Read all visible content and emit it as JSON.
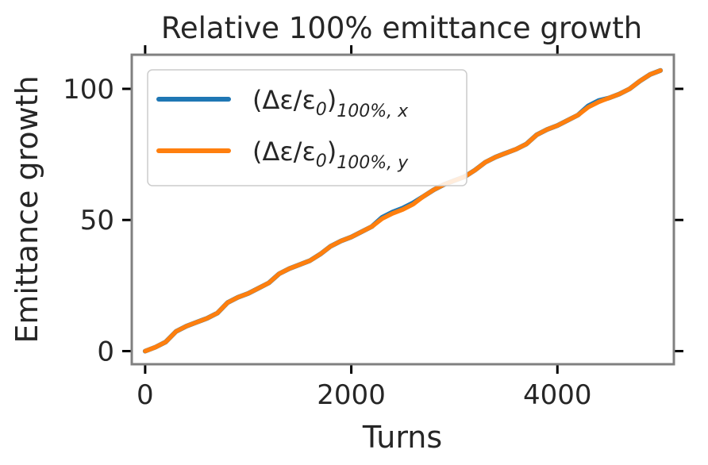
{
  "chart_data": {
    "type": "line",
    "title": "Relative 100% emittance growth",
    "xlabel": "Turns",
    "ylabel": "Emittance growth",
    "xlim": [
      -130,
      5130
    ],
    "ylim": [
      -5,
      113
    ],
    "x_ticks": [
      0,
      2000,
      4000
    ],
    "x_tick_labels": [
      "0",
      "2000",
      "4000"
    ],
    "y_ticks": [
      0,
      50,
      100
    ],
    "y_tick_labels": [
      "0",
      "50",
      "100"
    ],
    "grid": false,
    "legend": {
      "placement": "top-left"
    },
    "series": [
      {
        "name": "(Δε/ε0)100%, x",
        "name_main": "(Δε/ε",
        "name_zero": "0",
        "name_close": ")",
        "name_sub": "100%, x",
        "color": "#1f77b4",
        "x": [
          0,
          100,
          200,
          300,
          400,
          500,
          600,
          700,
          800,
          900,
          1000,
          1100,
          1200,
          1300,
          1400,
          1500,
          1600,
          1700,
          1800,
          1900,
          2000,
          2100,
          2200,
          2300,
          2400,
          2500,
          2600,
          2700,
          2800,
          2900,
          3000,
          3100,
          3200,
          3300,
          3400,
          3500,
          3600,
          3700,
          3800,
          3900,
          4000,
          4100,
          4200,
          4300,
          4400,
          4500,
          4600,
          4700,
          4800,
          4900,
          5000
        ],
        "y": [
          0,
          1.5,
          3.5,
          7.5,
          9.5,
          11,
          12.5,
          14.5,
          18.5,
          20.5,
          22,
          24,
          26,
          29.5,
          31.5,
          33,
          34.5,
          37,
          40,
          42,
          43.5,
          45.5,
          47.5,
          51,
          53,
          54.5,
          56.5,
          59,
          61.5,
          63.5,
          65,
          66.5,
          69,
          72,
          74,
          75.5,
          77,
          79,
          82.5,
          84.5,
          86,
          88,
          90,
          93.5,
          95.5,
          96.5,
          98,
          100,
          103,
          105.5,
          107
        ]
      },
      {
        "name": "(Δε/ε0)100%, y",
        "name_main": "(Δε/ε",
        "name_zero": "0",
        "name_close": ")",
        "name_sub": "100%, y",
        "color": "#ff7f0e",
        "x": [
          0,
          100,
          200,
          300,
          400,
          500,
          600,
          700,
          800,
          900,
          1000,
          1100,
          1200,
          1300,
          1400,
          1500,
          1600,
          1700,
          1800,
          1900,
          2000,
          2100,
          2200,
          2300,
          2400,
          2500,
          2600,
          2700,
          2800,
          2900,
          3000,
          3100,
          3200,
          3300,
          3400,
          3500,
          3600,
          3700,
          3800,
          3900,
          4000,
          4100,
          4200,
          4300,
          4400,
          4500,
          4600,
          4700,
          4800,
          4900,
          5000
        ],
        "y": [
          0,
          1.5,
          3.5,
          7.5,
          9.5,
          11,
          12.5,
          14.5,
          18.5,
          20.5,
          22,
          24,
          26,
          29.5,
          31.5,
          33,
          34.5,
          37,
          40,
          42,
          43.5,
          45.5,
          47.5,
          50.5,
          52.5,
          54,
          56,
          59,
          61.5,
          63.5,
          65,
          66.5,
          69,
          72,
          74,
          75.5,
          77,
          79,
          82.5,
          84.5,
          86,
          88,
          90,
          93,
          95,
          96.5,
          98,
          100,
          103,
          105.5,
          107
        ]
      }
    ]
  }
}
